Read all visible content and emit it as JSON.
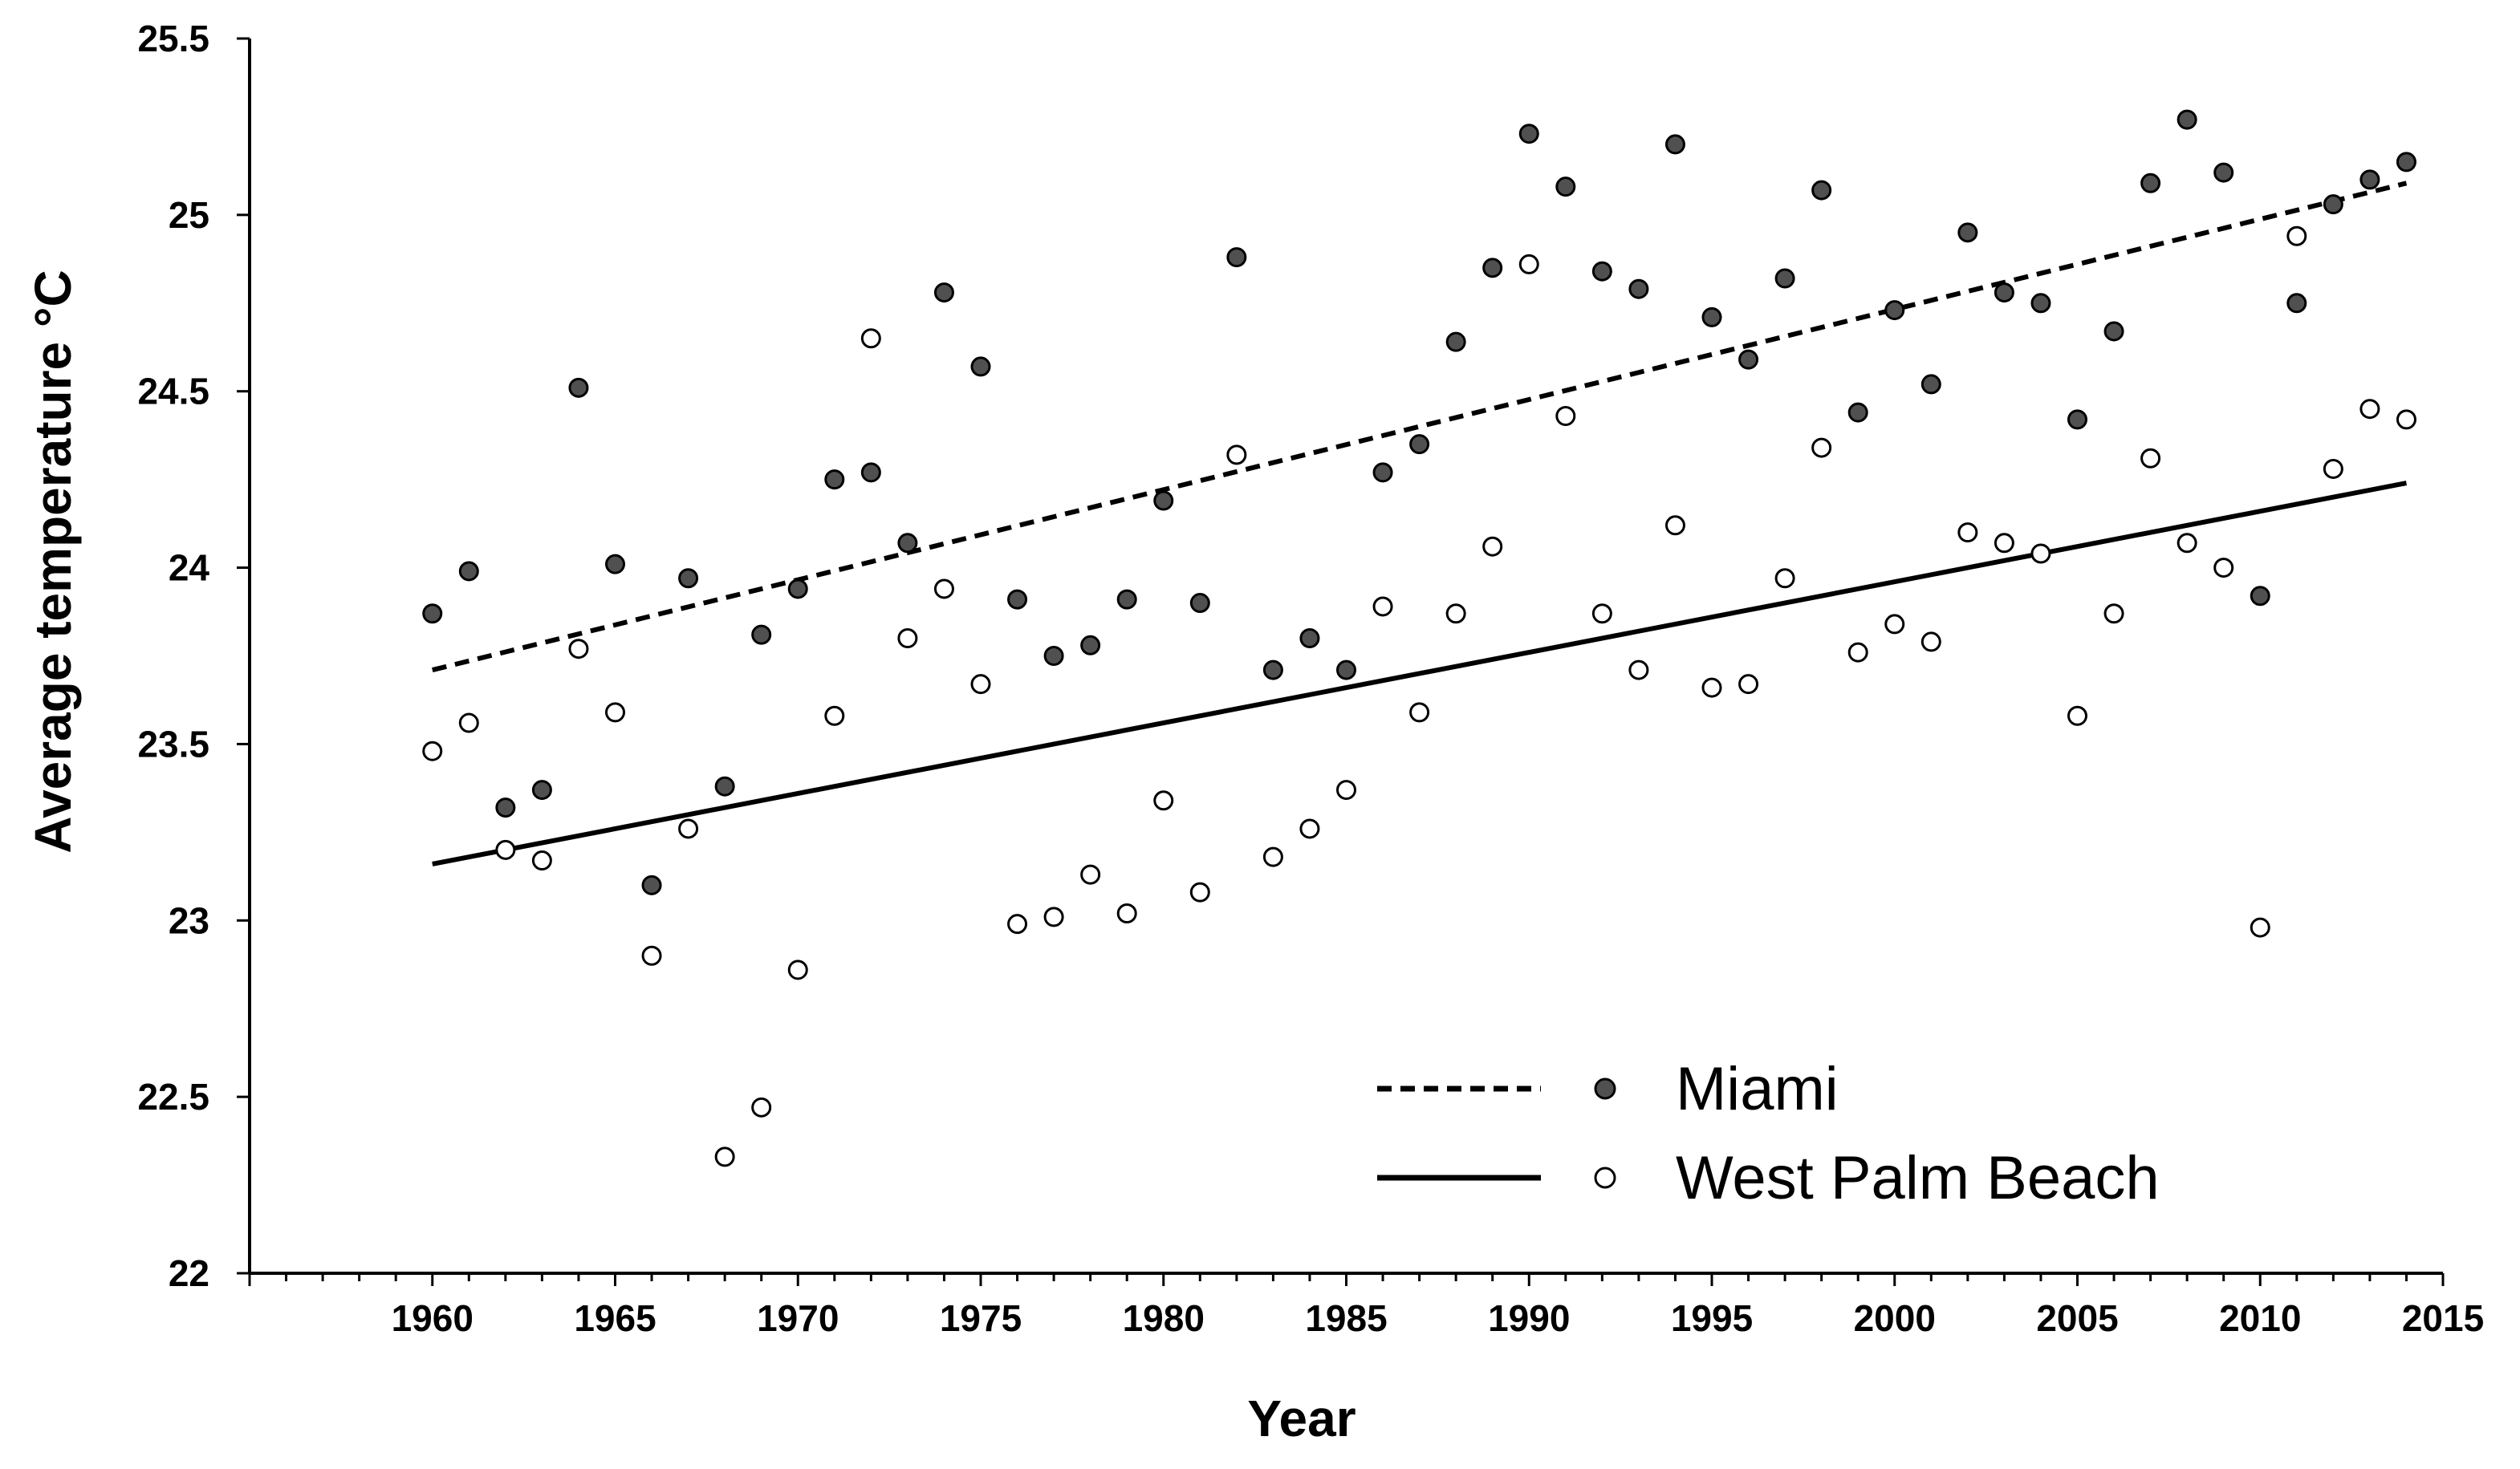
{
  "chart_data": {
    "type": "scatter",
    "xlabel": "Year",
    "ylabel": "Average temperature  °C",
    "xlim": [
      1955,
      2015
    ],
    "ylim": [
      22,
      25.5
    ],
    "x_ticks": [
      "1960",
      "1965",
      "1970",
      "1975",
      "1980",
      "1985",
      "1990",
      "1995",
      "2000",
      "2005",
      "2010",
      "2015"
    ],
    "y_ticks": [
      "22",
      "22.5",
      "23",
      "23.5",
      "24",
      "24.5",
      "25",
      "25.5"
    ],
    "legend_placement": "bottom-right",
    "series": [
      {
        "name": "Miami",
        "marker": "filled-circle",
        "marker_color": "#505050",
        "trend_style": "dashed",
        "trendline": {
          "x": [
            1960,
            2014
          ],
          "y": [
            23.71,
            25.09
          ]
        },
        "x": [
          1960,
          1961,
          1962,
          1963,
          1964,
          1965,
          1966,
          1967,
          1968,
          1969,
          1970,
          1971,
          1972,
          1973,
          1974,
          1975,
          1976,
          1977,
          1978,
          1979,
          1980,
          1981,
          1982,
          1983,
          1984,
          1985,
          1986,
          1987,
          1988,
          1989,
          1990,
          1991,
          1992,
          1993,
          1994,
          1995,
          1996,
          1997,
          1998,
          1999,
          2000,
          2001,
          2002,
          2003,
          2004,
          2005,
          2006,
          2007,
          2008,
          2009,
          2010,
          2011,
          2012,
          2013,
          2014
        ],
        "y": [
          23.87,
          23.99,
          23.32,
          23.37,
          24.51,
          24.01,
          23.1,
          23.97,
          23.38,
          23.81,
          23.94,
          24.25,
          24.27,
          24.07,
          24.78,
          24.57,
          23.91,
          23.75,
          23.78,
          23.91,
          24.19,
          23.9,
          24.88,
          23.71,
          23.8,
          23.71,
          24.27,
          24.35,
          24.64,
          24.85,
          25.23,
          25.08,
          24.84,
          24.79,
          25.2,
          24.71,
          24.59,
          24.82,
          25.07,
          24.44,
          24.73,
          24.52,
          24.95,
          24.78,
          24.75,
          24.42,
          24.67,
          25.09,
          25.27,
          25.12,
          23.92,
          24.75,
          25.03,
          25.1,
          25.15
        ]
      },
      {
        "name": "West Palm Beach",
        "marker": "open-circle",
        "marker_color": "#ffffff",
        "trend_style": "solid",
        "trendline": {
          "x": [
            1960,
            2014
          ],
          "y": [
            23.16,
            24.24
          ]
        },
        "x": [
          1960,
          1961,
          1962,
          1963,
          1964,
          1965,
          1966,
          1967,
          1968,
          1969,
          1970,
          1971,
          1972,
          1973,
          1974,
          1975,
          1976,
          1977,
          1978,
          1979,
          1980,
          1981,
          1982,
          1983,
          1984,
          1985,
          1986,
          1987,
          1988,
          1989,
          1990,
          1991,
          1992,
          1993,
          1994,
          1995,
          1996,
          1997,
          1998,
          1999,
          2000,
          2001,
          2002,
          2003,
          2004,
          2005,
          2006,
          2007,
          2008,
          2009,
          2010,
          2011,
          2012,
          2013,
          2014
        ],
        "y": [
          23.48,
          23.56,
          23.2,
          23.17,
          23.77,
          23.59,
          22.9,
          23.26,
          22.33,
          22.47,
          22.86,
          23.58,
          24.65,
          23.8,
          23.94,
          23.67,
          22.99,
          23.01,
          23.13,
          23.02,
          23.34,
          23.08,
          24.32,
          23.18,
          23.26,
          23.37,
          23.89,
          23.59,
          23.87,
          24.06,
          24.86,
          24.43,
          23.87,
          23.71,
          24.12,
          23.66,
          23.67,
          23.97,
          24.34,
          23.76,
          23.84,
          23.79,
          24.1,
          24.07,
          24.04,
          23.58,
          23.87,
          24.31,
          24.07,
          24.0,
          22.98,
          24.94,
          24.28,
          24.45,
          24.42
        ]
      }
    ]
  }
}
